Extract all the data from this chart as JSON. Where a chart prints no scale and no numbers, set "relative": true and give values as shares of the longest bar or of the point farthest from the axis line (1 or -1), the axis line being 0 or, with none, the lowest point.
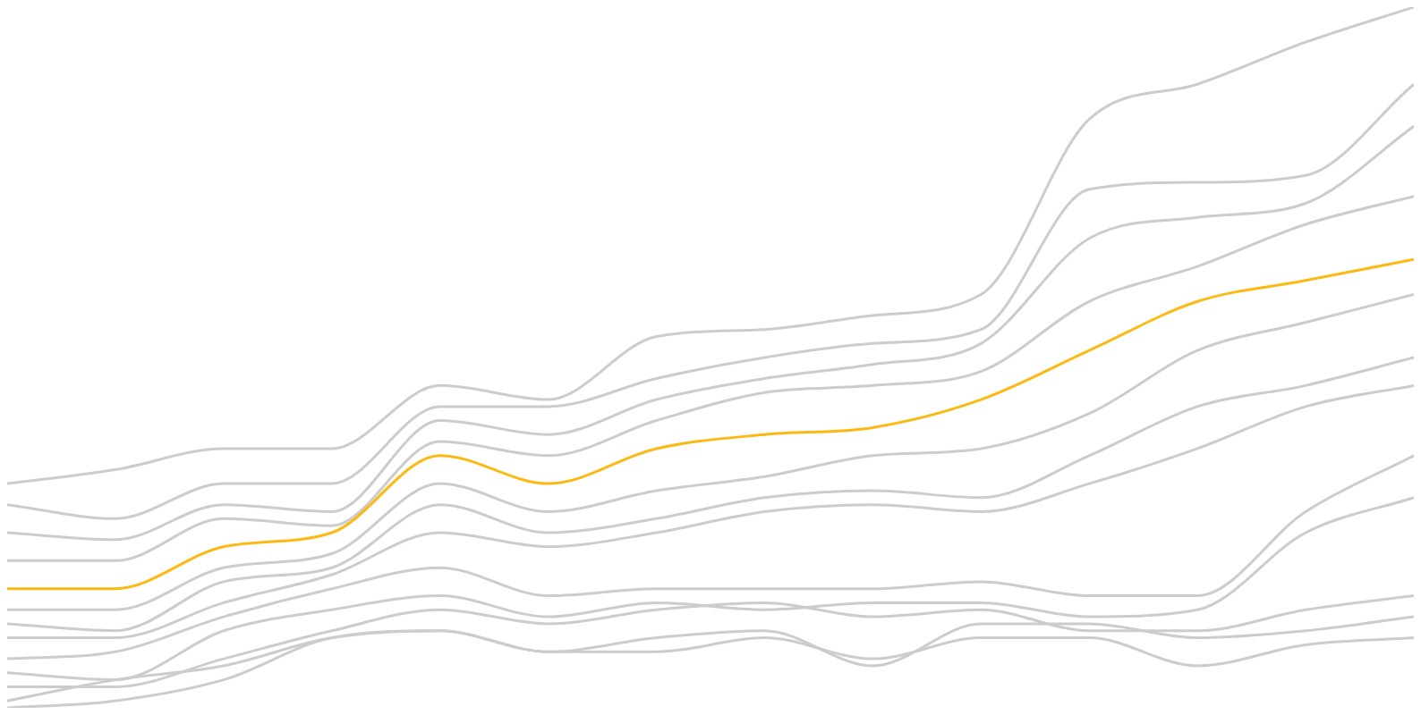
{
  "chart_data": {
    "type": "line",
    "relative": true,
    "legend": false,
    "grid": false,
    "marker": "none",
    "categories": [
      null,
      null,
      null,
      null,
      null,
      null,
      null,
      null,
      null,
      null,
      null,
      null,
      null,
      null
    ],
    "series": [
      {
        "color": "#fdb913",
        "values": [
          0.17,
          0.17,
          0.23,
          0.25,
          0.36,
          0.32,
          0.37,
          0.39,
          0.4,
          0.44,
          0.51,
          0.58,
          0.61,
          0.64
        ]
      },
      {
        "color": "#cccccc",
        "values": [
          0.32,
          0.34,
          0.37,
          0.37,
          0.46,
          0.44,
          0.53,
          0.54,
          0.56,
          0.59,
          0.84,
          0.89,
          0.95,
          1
        ]
      },
      {
        "color": "#cccccc",
        "values": [
          0.29,
          0.27,
          0.32,
          0.32,
          0.43,
          0.43,
          0.47,
          0.5,
          0.52,
          0.54,
          0.74,
          0.75,
          0.76,
          0.89
        ]
      },
      {
        "color": "#cccccc",
        "values": [
          0.25,
          0.24,
          0.29,
          0.28,
          0.41,
          0.39,
          0.44,
          0.47,
          0.49,
          0.52,
          0.67,
          0.7,
          0.72,
          0.83
        ]
      },
      {
        "color": "#cccccc",
        "values": [
          0.21,
          0.21,
          0.27,
          0.26,
          0.38,
          0.36,
          0.41,
          0.45,
          0.46,
          0.48,
          0.58,
          0.63,
          0.69,
          0.73
        ]
      },
      {
        "color": "#cccccc",
        "values": [
          0.14,
          0.14,
          0.2,
          0.22,
          0.32,
          0.28,
          0.31,
          0.33,
          0.36,
          0.37,
          0.42,
          0.51,
          0.55,
          0.59
        ]
      },
      {
        "color": "#cccccc",
        "values": [
          0.12,
          0.11,
          0.18,
          0.2,
          0.29,
          0.25,
          0.27,
          0.3,
          0.31,
          0.3,
          0.36,
          0.43,
          0.46,
          0.5
        ]
      },
      {
        "color": "#cccccc",
        "values": [
          0.1,
          0.1,
          0.15,
          0.19,
          0.25,
          0.23,
          0.25,
          0.28,
          0.29,
          0.28,
          0.32,
          0.37,
          0.43,
          0.46
        ]
      },
      {
        "color": "#cccccc",
        "values": [
          0.07,
          0.08,
          0.13,
          0.17,
          0.2,
          0.16,
          0.17,
          0.17,
          0.17,
          0.18,
          0.16,
          0.16,
          0.28,
          0.36
        ]
      },
      {
        "color": "#cccccc",
        "values": [
          0.05,
          0.04,
          0.11,
          0.14,
          0.16,
          0.13,
          0.15,
          0.14,
          0.15,
          0.15,
          0.13,
          0.14,
          0.25,
          0.3
        ]
      },
      {
        "color": "#cccccc",
        "values": [
          0.03,
          0.03,
          0.07,
          0.11,
          0.14,
          0.12,
          0.14,
          0.15,
          0.13,
          0.14,
          0.11,
          0.11,
          0.14,
          0.16
        ]
      },
      {
        "color": "#cccccc",
        "values": [
          0.01,
          0.04,
          0.06,
          0.1,
          0.11,
          0.08,
          0.1,
          0.11,
          0.06,
          0.12,
          0.12,
          0.1,
          0.11,
          0.13
        ]
      },
      {
        "color": "#cccccc",
        "values": [
          0,
          0.01,
          0.04,
          0.1,
          0.11,
          0.08,
          0.08,
          0.1,
          0.07,
          0.1,
          0.1,
          0.06,
          0.09,
          0.1
        ]
      }
    ]
  }
}
